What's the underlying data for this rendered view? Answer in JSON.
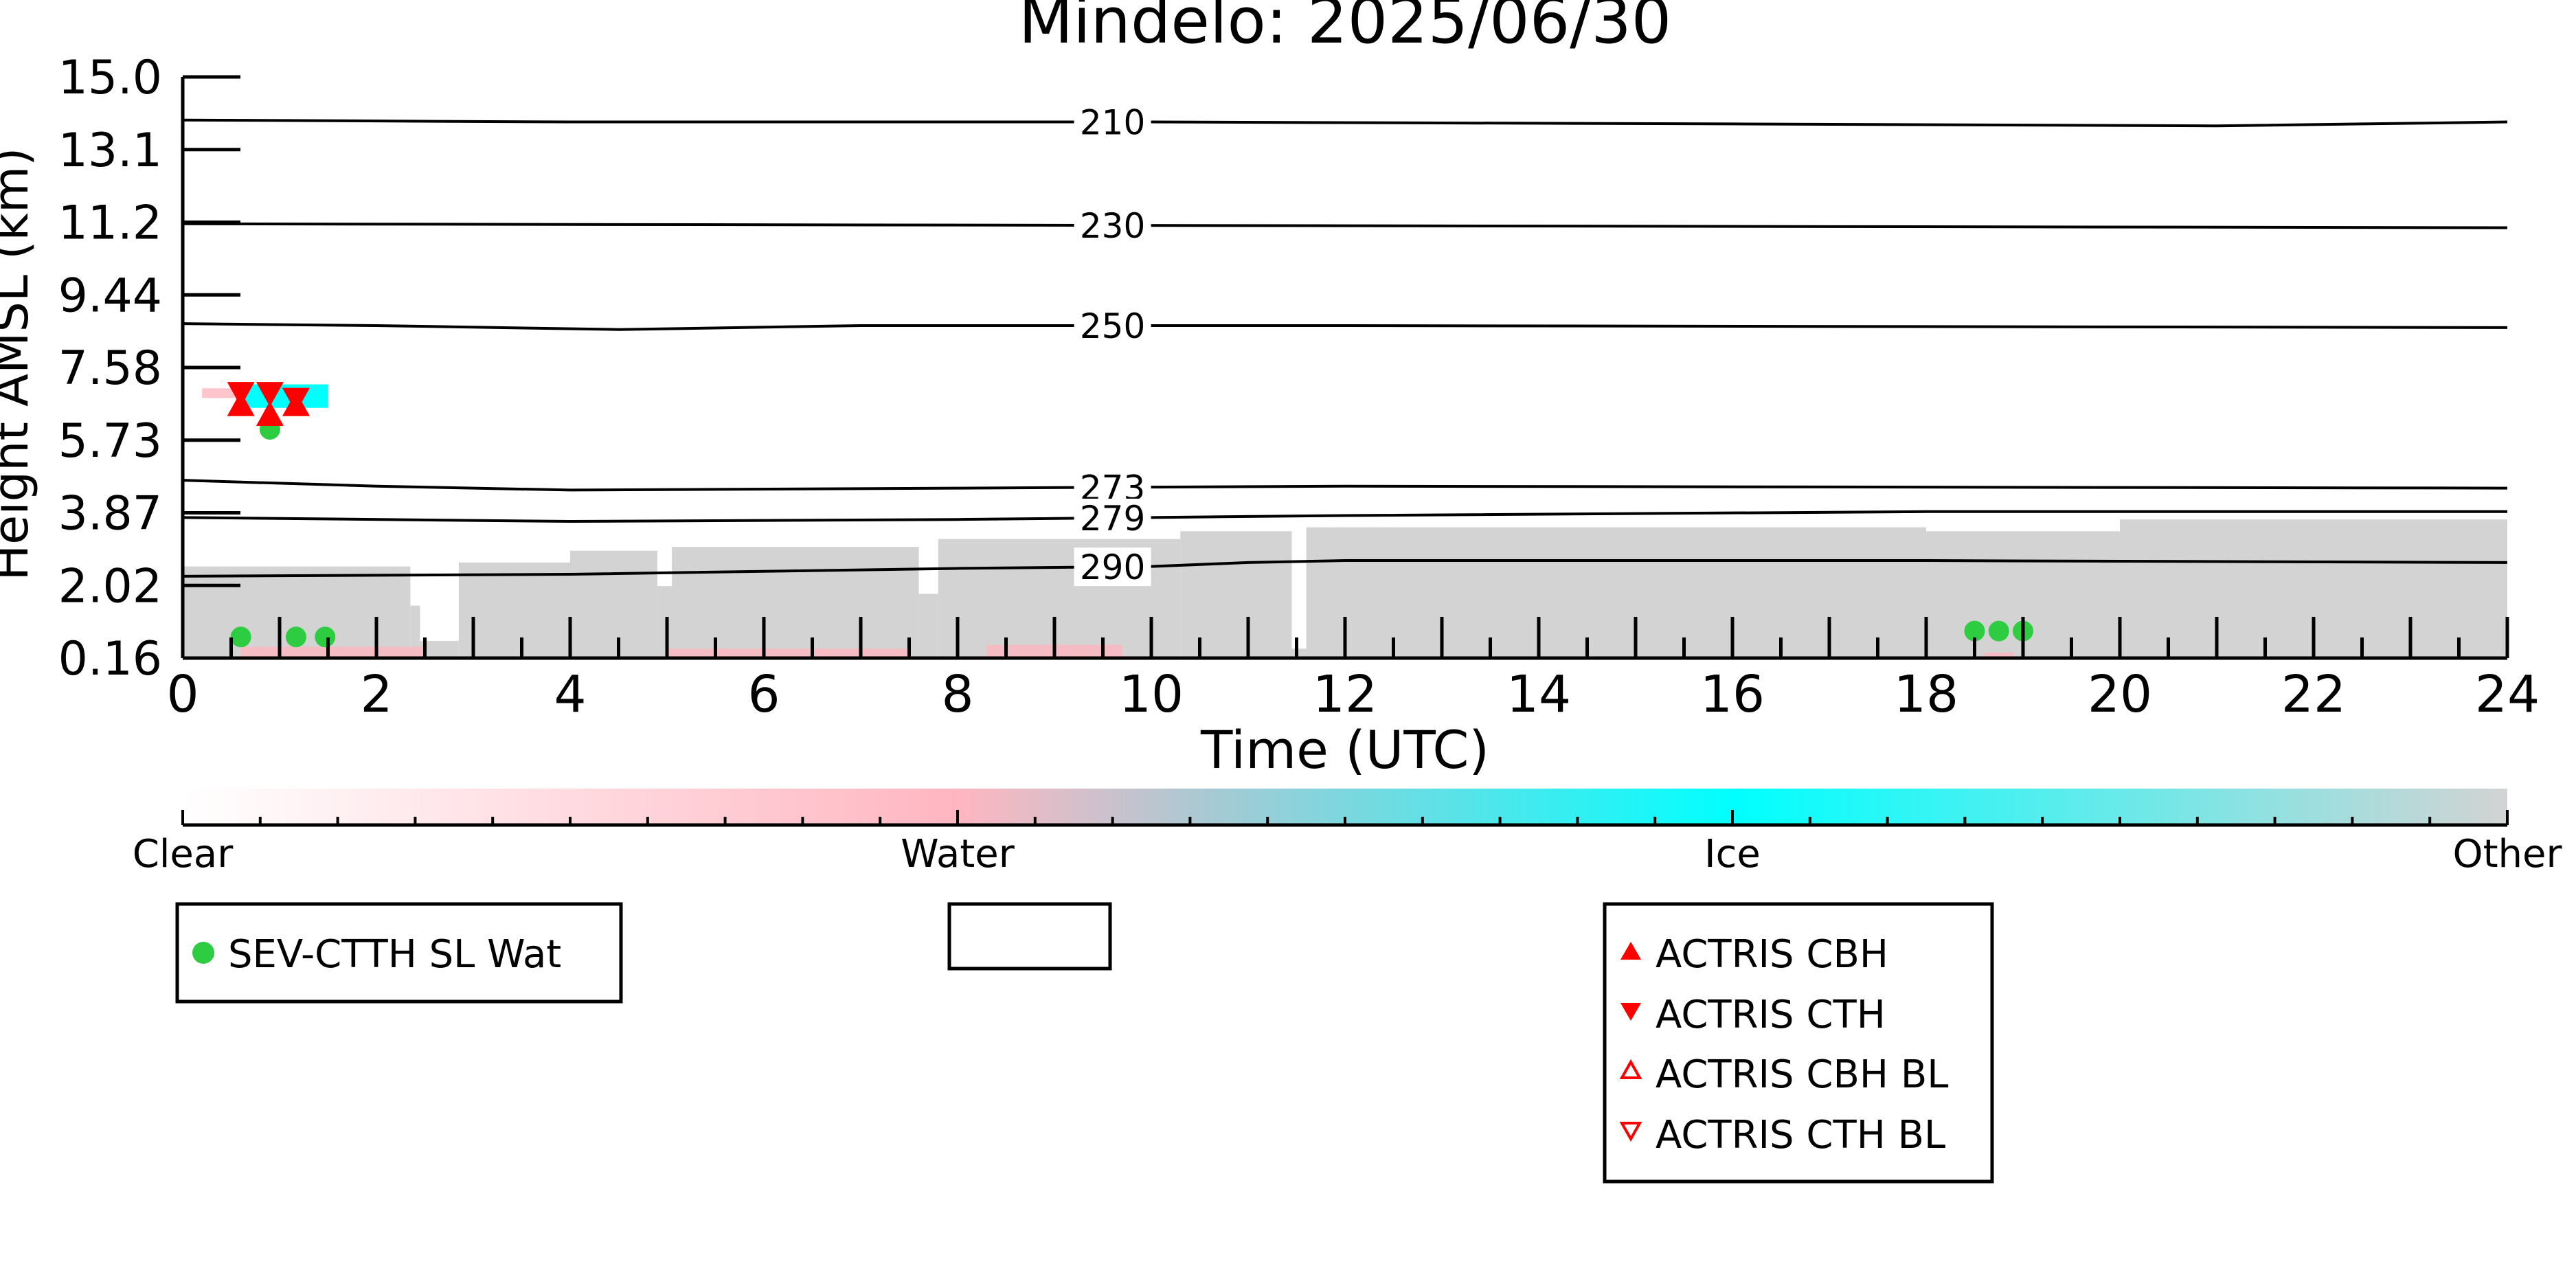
{
  "chart_data": {
    "type": "scatter",
    "title": "Mindelo: 2025/06/30",
    "xlabel": "Time (UTC)",
    "ylabel": "Height AMSL (km)",
    "xlim": [
      0,
      24
    ],
    "ylim": [
      0.16,
      15.0
    ],
    "x_ticks": [
      "0",
      "2",
      "4",
      "6",
      "8",
      "10",
      "12",
      "14",
      "16",
      "18",
      "20",
      "22",
      "24"
    ],
    "y_ticks": [
      "0.16",
      "2.02",
      "3.87",
      "5.73",
      "7.58",
      "9.44",
      "11.2",
      "13.1",
      "15.0"
    ],
    "isotherms": [
      {
        "label": "210",
        "points": [
          [
            0,
            13.9
          ],
          [
            4,
            13.85
          ],
          [
            10,
            13.85
          ],
          [
            16,
            13.8
          ],
          [
            21,
            13.75
          ],
          [
            24,
            13.85
          ]
        ]
      },
      {
        "label": "230",
        "points": [
          [
            0,
            11.25
          ],
          [
            12,
            11.2
          ],
          [
            24,
            11.15
          ]
        ]
      },
      {
        "label": "250",
        "points": [
          [
            0,
            8.7
          ],
          [
            2,
            8.65
          ],
          [
            4.5,
            8.55
          ],
          [
            7,
            8.65
          ],
          [
            12,
            8.65
          ],
          [
            24,
            8.6
          ]
        ]
      },
      {
        "label": "273",
        "points": [
          [
            0,
            4.7
          ],
          [
            2,
            4.55
          ],
          [
            4,
            4.45
          ],
          [
            8,
            4.5
          ],
          [
            12,
            4.55
          ],
          [
            24,
            4.5
          ]
        ]
      },
      {
        "label": "279",
        "points": [
          [
            0,
            3.75
          ],
          [
            4,
            3.65
          ],
          [
            8,
            3.7
          ],
          [
            12,
            3.8
          ],
          [
            18,
            3.9
          ],
          [
            24,
            3.9
          ]
        ]
      },
      {
        "label": "290",
        "points": [
          [
            0,
            2.25
          ],
          [
            4,
            2.3
          ],
          [
            8,
            2.45
          ],
          [
            10,
            2.5
          ],
          [
            11,
            2.6
          ],
          [
            12,
            2.65
          ],
          [
            18,
            2.65
          ],
          [
            24,
            2.6
          ]
        ]
      }
    ],
    "cloud_mask": {
      "classes": [
        "Clear",
        "Water",
        "Ice",
        "Other"
      ],
      "colors": [
        "#ffffff",
        "#ffb6c1",
        "#00ffff",
        "#d3d3d3"
      ],
      "other_columns": [
        {
          "start": 0.0,
          "end": 2.35,
          "top": 2.5
        },
        {
          "start": 2.35,
          "end": 2.45,
          "top": 1.5
        },
        {
          "start": 2.45,
          "end": 2.85,
          "top": 0.6
        },
        {
          "start": 2.85,
          "end": 4.0,
          "top": 2.6
        },
        {
          "start": 4.0,
          "end": 4.9,
          "top": 2.9
        },
        {
          "start": 4.9,
          "end": 5.05,
          "top": 2.0
        },
        {
          "start": 5.05,
          "end": 7.6,
          "top": 3.0
        },
        {
          "start": 7.6,
          "end": 7.8,
          "top": 1.8
        },
        {
          "start": 7.8,
          "end": 10.3,
          "top": 3.2
        },
        {
          "start": 10.3,
          "end": 11.45,
          "top": 3.4
        },
        {
          "start": 11.45,
          "end": 11.6,
          "top": 0.4
        },
        {
          "start": 11.6,
          "end": 18.0,
          "top": 3.5
        },
        {
          "start": 18.0,
          "end": 20.0,
          "top": 3.4
        },
        {
          "start": 20.0,
          "end": 24.0,
          "top": 3.7
        }
      ],
      "ice_segments": [
        {
          "start": 0.55,
          "end": 1.5,
          "bottom": 6.55,
          "top": 7.15
        }
      ],
      "water_segments": [
        {
          "start": 0.2,
          "end": 0.55,
          "bottom": 6.8,
          "top": 7.05
        },
        {
          "start": 0.6,
          "end": 2.5,
          "bottom": 0.16,
          "top": 0.45
        },
        {
          "start": 5.0,
          "end": 7.5,
          "bottom": 0.16,
          "top": 0.4
        },
        {
          "start": 8.3,
          "end": 9.7,
          "bottom": 0.16,
          "top": 0.5
        },
        {
          "start": 18.6,
          "end": 18.9,
          "bottom": 0.16,
          "top": 0.3
        }
      ]
    },
    "series": [
      {
        "name": "SEV-CTTH SL Wat",
        "marker": "circle",
        "color": "#2ecc40",
        "points": [
          [
            0.6,
            0.7
          ],
          [
            0.9,
            6.0
          ],
          [
            1.17,
            0.7
          ],
          [
            1.47,
            0.7
          ],
          [
            18.5,
            0.85
          ],
          [
            18.75,
            0.85
          ],
          [
            19.0,
            0.85
          ]
        ]
      },
      {
        "name": "ACTRIS CBH",
        "marker": "triangle-up",
        "color": "#ff0000",
        "points": [
          [
            0.6,
            6.55
          ],
          [
            0.9,
            6.3
          ],
          [
            1.17,
            6.55
          ]
        ]
      },
      {
        "name": "ACTRIS CTH",
        "marker": "triangle-down",
        "color": "#ff0000",
        "points": [
          [
            0.6,
            7.0
          ],
          [
            0.9,
            7.0
          ],
          [
            1.17,
            6.85
          ]
        ]
      },
      {
        "name": "ACTRIS CBH BL",
        "marker": "triangle-up-open",
        "color": "#ff0000",
        "points": []
      },
      {
        "name": "ACTRIS CTH BL",
        "marker": "triangle-down-open",
        "color": "#ff0000",
        "points": []
      }
    ],
    "legend_placement": "below"
  }
}
